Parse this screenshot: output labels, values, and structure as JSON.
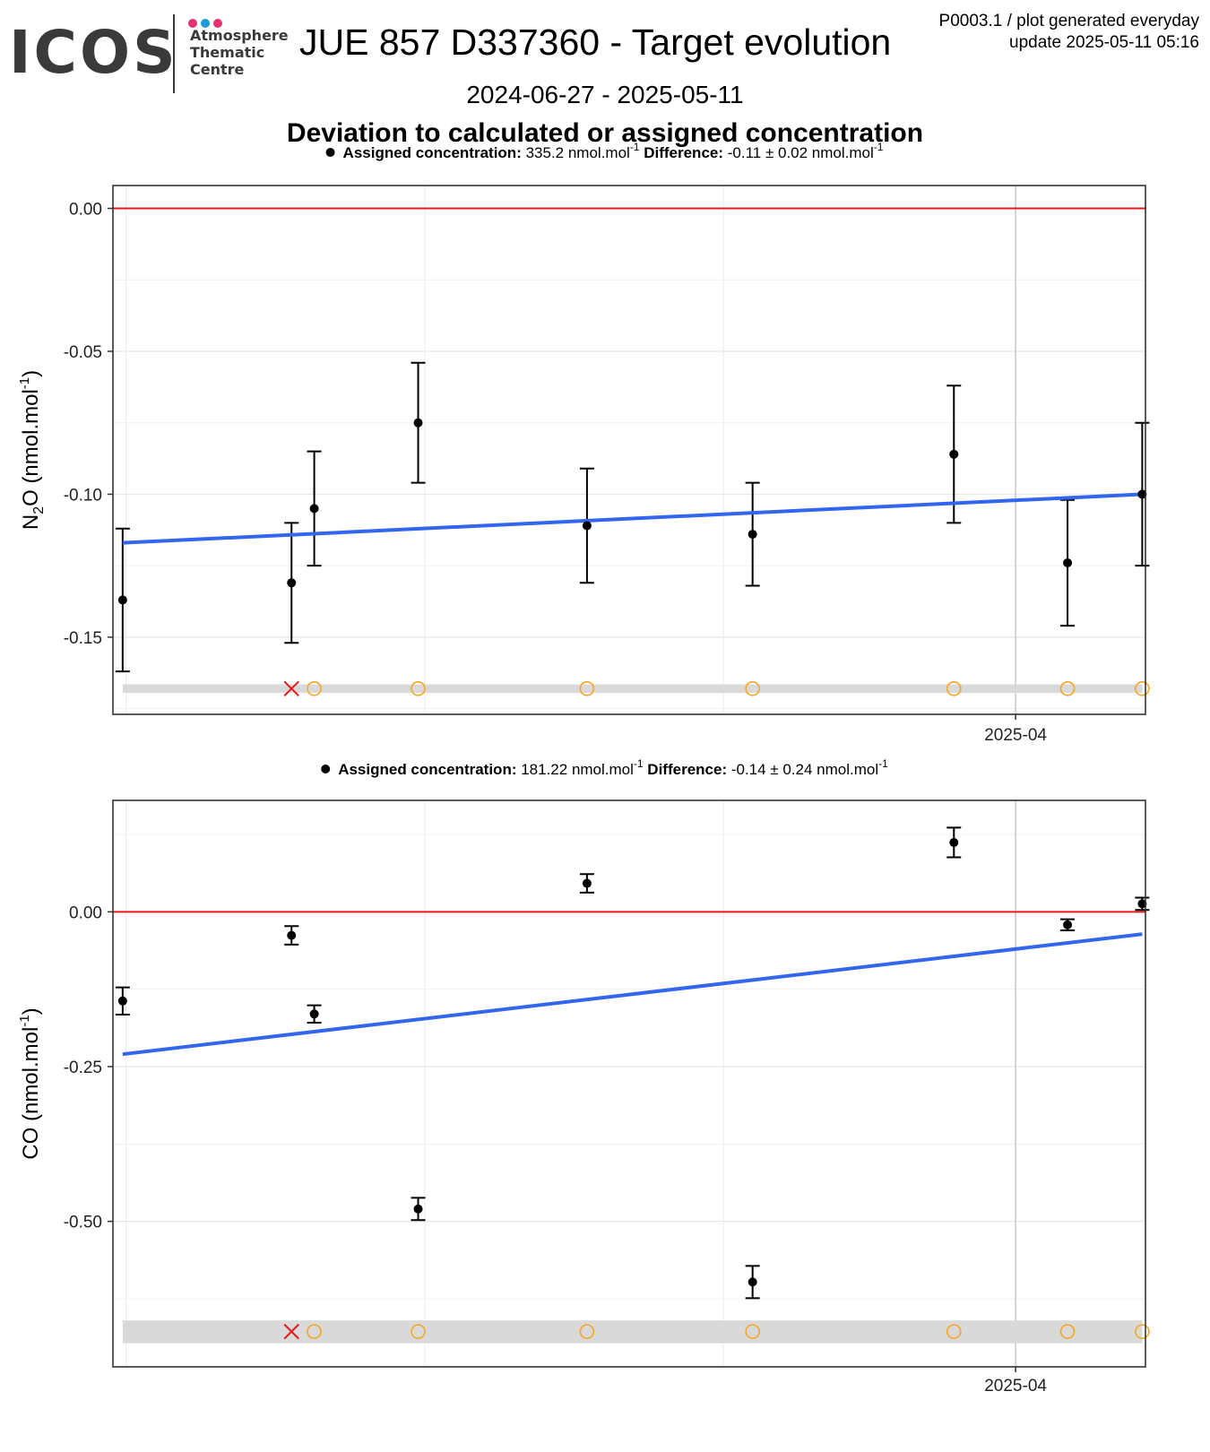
{
  "logo": {
    "main_text": "ICOS",
    "lines": [
      "Atmosphere",
      "Thematic",
      "Centre"
    ],
    "dot_colors": [
      "#e5316f",
      "#1a9ad6",
      "#e5316f"
    ]
  },
  "header": {
    "title": "JUE 857 D337360 - Target evolution",
    "corner_line1": "P0003.1 / plot generated everyday",
    "corner_line2": "update  2025-05-11 05:16",
    "date_range": "2024-06-27 - 2025-05-11",
    "subtitle": "Deviation to calculated or assigned concentration"
  },
  "colors": {
    "zero_line": "#e41a1c",
    "trend_line": "#3366ee",
    "points": "#000000",
    "flag_circle": "#f5a623",
    "flag_cross": "#e41a1c",
    "band": "#d9d9d9",
    "grid": "#e6e6e6"
  },
  "chart_data": [
    {
      "type": "scatter",
      "gas": "N2O",
      "legend": {
        "assigned_label": "Assigned concentration:",
        "assigned_value": "335.2 nmol.mol",
        "difference_label": "Difference:",
        "difference_value": "-0.11 ± 0.02 nmol.mol",
        "superscript": "-1"
      },
      "ylabel_main": "N",
      "ylabel_sub": "2",
      "ylabel_rest": "O (nmol.mol",
      "ylabel_sup": "-1",
      "ylabel_close": ")",
      "x_tick_labels": [
        "2025-04"
      ],
      "x_tick_dates": [
        "2025-04-01"
      ],
      "x_minor_dates": [
        "2024-07-01",
        "2024-10-01",
        "2025-01-01",
        "2025-07-01"
      ],
      "xlim": [
        "2024-06-27",
        "2025-05-11"
      ],
      "y_ticks": [
        0.0,
        -0.05,
        -0.1,
        -0.15
      ],
      "y_tick_labels": [
        "0.00",
        "-0.05",
        "-0.10",
        "-0.15"
      ],
      "ylim": [
        -0.177,
        0.008
      ],
      "points": [
        {
          "x": "2024-06-30",
          "y": -0.137,
          "err": 0.025
        },
        {
          "x": "2024-08-21",
          "y": -0.131,
          "err": 0.021
        },
        {
          "x": "2024-08-28",
          "y": -0.105,
          "err": 0.02
        },
        {
          "x": "2024-09-29",
          "y": -0.075,
          "err": 0.021
        },
        {
          "x": "2024-11-20",
          "y": -0.111,
          "err": 0.02
        },
        {
          "x": "2025-01-10",
          "y": -0.114,
          "err": 0.018
        },
        {
          "x": "2025-03-13",
          "y": -0.086,
          "err": 0.024
        },
        {
          "x": "2025-04-17",
          "y": -0.124,
          "err": 0.022
        },
        {
          "x": "2025-05-10",
          "y": -0.1,
          "err": 0.025
        }
      ],
      "trend": {
        "x": [
          "2024-06-30",
          "2025-05-10"
        ],
        "y": [
          -0.117,
          -0.1
        ]
      },
      "flags_y": -0.168,
      "flag_cross_x": "2024-08-21",
      "flag_circles_x": [
        "2024-08-28",
        "2024-09-29",
        "2024-11-20",
        "2025-01-10",
        "2025-03-13",
        "2025-04-17",
        "2025-05-10"
      ],
      "band": {
        "x": [
          "2024-06-30",
          "2025-05-10"
        ],
        "y": [
          -0.1665,
          -0.1695
        ]
      }
    },
    {
      "type": "scatter",
      "gas": "CO",
      "legend": {
        "assigned_label": "Assigned concentration:",
        "assigned_value": "181.22 nmol.mol",
        "difference_label": "Difference:",
        "difference_value": "-0.14 ± 0.24 nmol.mol",
        "superscript": "-1"
      },
      "ylabel_main": "CO (nmol.mol",
      "ylabel_sup": "-1",
      "ylabel_close": ")",
      "x_tick_labels": [
        "2025-04"
      ],
      "x_tick_dates": [
        "2025-04-01"
      ],
      "x_minor_dates": [
        "2024-07-01",
        "2024-10-01",
        "2025-01-01",
        "2025-07-01"
      ],
      "xlim": [
        "2024-06-27",
        "2025-05-11"
      ],
      "y_ticks": [
        0.0,
        -0.25,
        -0.5
      ],
      "y_tick_labels": [
        "0.00",
        "-0.25",
        "-0.50"
      ],
      "ylim": [
        -0.735,
        0.18
      ],
      "points": [
        {
          "x": "2024-06-30",
          "y": -0.144,
          "err": 0.022
        },
        {
          "x": "2024-08-21",
          "y": -0.038,
          "err": 0.015
        },
        {
          "x": "2024-08-28",
          "y": -0.165,
          "err": 0.014
        },
        {
          "x": "2024-09-29",
          "y": -0.48,
          "err": 0.018
        },
        {
          "x": "2024-11-20",
          "y": 0.046,
          "err": 0.015
        },
        {
          "x": "2025-01-10",
          "y": -0.598,
          "err": 0.026
        },
        {
          "x": "2025-03-13",
          "y": 0.112,
          "err": 0.024
        },
        {
          "x": "2025-04-17",
          "y": -0.021,
          "err": 0.009
        },
        {
          "x": "2025-05-10",
          "y": 0.013,
          "err": 0.01
        }
      ],
      "trend": {
        "x": [
          "2024-06-30",
          "2025-05-10"
        ],
        "y": [
          -0.23,
          -0.036
        ]
      },
      "flags_y": -0.678,
      "flag_cross_x": "2024-08-21",
      "flag_circles_x": [
        "2024-08-28",
        "2024-09-29",
        "2024-11-20",
        "2025-01-10",
        "2025-03-13",
        "2025-04-17",
        "2025-05-10"
      ],
      "band": {
        "x": [
          "2024-06-30",
          "2025-05-10"
        ],
        "y": [
          -0.66,
          -0.697
        ]
      }
    }
  ]
}
